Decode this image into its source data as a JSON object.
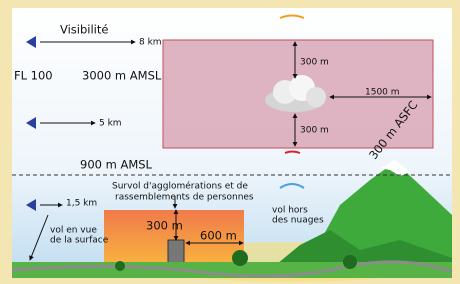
{
  "visibility": {
    "title": "Visibilité",
    "ranges": [
      "8 km",
      "5 km",
      "1,5 km"
    ]
  },
  "levels": {
    "flight_level": "FL 100",
    "amsl_high": "3000 m AMSL",
    "amsl_low": "900 m AMSL",
    "asfc": "300 m ASFC"
  },
  "cloud_clearance": {
    "above": "300 m",
    "below": "300 m",
    "horizontal": "1500 m"
  },
  "urban": {
    "title": [
      "Survol d'agglomérations et de",
      "rassemblements de personnes"
    ],
    "height": "300 m",
    "distance": "600 m"
  },
  "notes": {
    "surface": [
      "vol en vue",
      "de la surface"
    ],
    "clouds": [
      "vol hors",
      "des nuages"
    ]
  }
}
